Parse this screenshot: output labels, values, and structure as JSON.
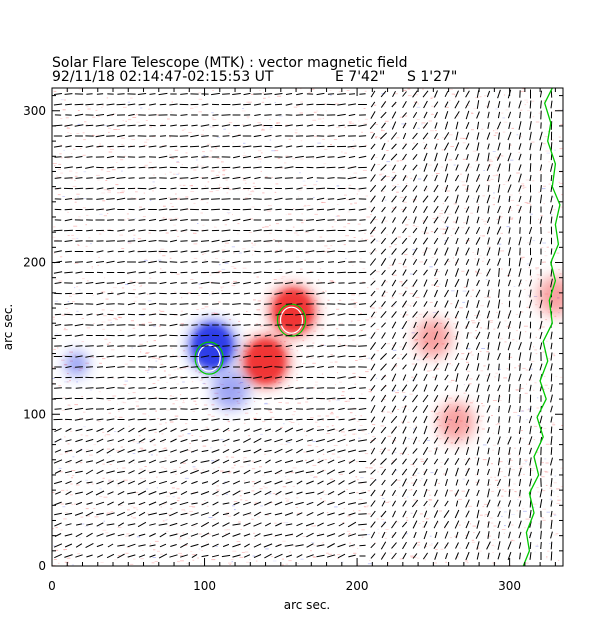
{
  "title": "Solar Flare Telescope (MTK) : vector magnetic field",
  "subtitle": {
    "date_time": "92/11/18  02:14:47-02:15:53 UT",
    "position_e": "E 7'42\"",
    "position_s": "S 1'27\""
  },
  "colors": {
    "positive_field": "#f03030",
    "negative_field": "#2a3ae8",
    "limb_contour": "#00c800",
    "vector": "#000000",
    "frame": "#000000"
  },
  "chart_data": {
    "type": "heatmap",
    "xlabel": "arc sec.",
    "ylabel": "arc sec.",
    "xlim": [
      0,
      335
    ],
    "ylim": [
      0,
      315
    ],
    "xticks": [
      "0",
      "100",
      "200",
      "300"
    ],
    "yticks": [
      "0",
      "100",
      "200",
      "300"
    ],
    "legend": "none",
    "regions": [
      {
        "polarity": "positive",
        "x": 158,
        "y": 168,
        "strength": "strong"
      },
      {
        "polarity": "positive",
        "x": 140,
        "y": 135,
        "strength": "strong"
      },
      {
        "polarity": "negative",
        "x": 105,
        "y": 145,
        "strength": "strong"
      },
      {
        "polarity": "negative",
        "x": 117,
        "y": 116,
        "strength": "moderate"
      },
      {
        "polarity": "negative",
        "x": 16,
        "y": 133,
        "strength": "weak"
      },
      {
        "polarity": "positive",
        "x": 250,
        "y": 150,
        "strength": "moderate"
      },
      {
        "polarity": "positive",
        "x": 265,
        "y": 95,
        "strength": "moderate"
      },
      {
        "polarity": "positive",
        "x": 330,
        "y": 178,
        "strength": "moderate"
      }
    ],
    "contours": [
      {
        "type": "negative-core",
        "x": 103,
        "y": 137
      },
      {
        "type": "positive-core",
        "x": 157,
        "y": 162
      }
    ],
    "limb_curve": [
      [
        328,
        315
      ],
      [
        323,
        305
      ],
      [
        327,
        292
      ],
      [
        325,
        280
      ],
      [
        330,
        265
      ],
      [
        328,
        250
      ],
      [
        333,
        238
      ],
      [
        330,
        225
      ],
      [
        332,
        212
      ],
      [
        327,
        200
      ],
      [
        330,
        188
      ],
      [
        326,
        175
      ],
      [
        328,
        160
      ],
      [
        322,
        148
      ],
      [
        325,
        135
      ],
      [
        320,
        122
      ],
      [
        324,
        110
      ],
      [
        318,
        98
      ],
      [
        322,
        85
      ],
      [
        316,
        72
      ],
      [
        319,
        60
      ],
      [
        313,
        48
      ],
      [
        316,
        35
      ],
      [
        311,
        22
      ],
      [
        313,
        10
      ],
      [
        309,
        0
      ]
    ]
  }
}
